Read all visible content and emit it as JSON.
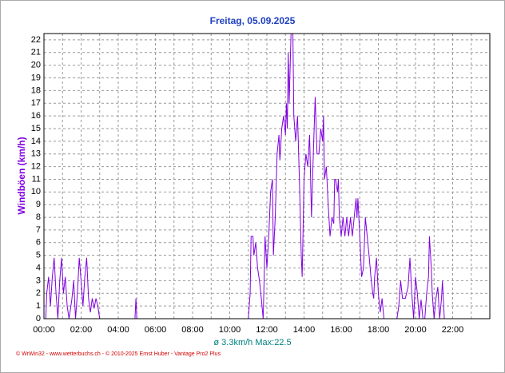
{
  "chart_data": {
    "type": "line",
    "title": "Freitag, 05.09.2025",
    "y_label": "Windböen (km/h)",
    "summary": "ø 3.3km/h  Max:22.5",
    "credit": "© WrWin32  -  www.wetterbuchs.ch  -  © 2010-2025 Ernst Huber - Vantage Pro2 Plus",
    "xlim": [
      0,
      24
    ],
    "ylim": [
      0,
      22.5
    ],
    "xticks": [
      {
        "value": 0,
        "label": "00:00"
      },
      {
        "value": 2,
        "label": "02:00"
      },
      {
        "value": 4,
        "label": "04:00"
      },
      {
        "value": 6,
        "label": "06:00"
      },
      {
        "value": 8,
        "label": "08:00"
      },
      {
        "value": 10,
        "label": "10:00"
      },
      {
        "value": 12,
        "label": "12:00"
      },
      {
        "value": 14,
        "label": "14:00"
      },
      {
        "value": 16,
        "label": "16:00"
      },
      {
        "value": 18,
        "label": "18:00"
      },
      {
        "value": 20,
        "label": "20:00"
      },
      {
        "value": 22,
        "label": "22:00"
      }
    ],
    "x_minor_ticks": [
      1,
      3,
      5,
      7,
      9,
      11,
      13,
      15,
      17,
      19,
      21,
      23
    ],
    "yticks": [
      0,
      1,
      2,
      3,
      4,
      5,
      6,
      7,
      8,
      9,
      10,
      11,
      12,
      13,
      14,
      15,
      16,
      17,
      18,
      19,
      20,
      21,
      22
    ],
    "grid": true,
    "series": [
      {
        "name": "Windböen",
        "color": "#8000e0",
        "x": [
          0.0,
          0.1,
          0.15,
          0.25,
          0.35,
          0.45,
          0.55,
          0.65,
          0.75,
          0.85,
          0.95,
          1.05,
          1.15,
          1.25,
          1.35,
          1.5,
          1.6,
          1.7,
          1.8,
          1.9,
          2.0,
          2.1,
          2.2,
          2.3,
          2.4,
          2.5,
          2.6,
          2.7,
          2.8,
          2.9,
          3.0,
          4.9,
          4.95,
          5.0,
          11.0,
          11.1,
          11.15,
          11.25,
          11.3,
          11.4,
          11.5,
          11.6,
          11.7,
          11.8,
          11.85,
          11.9,
          12.0,
          12.1,
          12.2,
          12.3,
          12.35,
          12.45,
          12.55,
          12.65,
          12.7,
          12.8,
          12.9,
          13.0,
          13.05,
          13.1,
          13.15,
          13.2,
          13.3,
          13.4,
          13.45,
          13.55,
          13.65,
          13.75,
          13.85,
          13.9,
          14.0,
          14.1,
          14.2,
          14.3,
          14.4,
          14.5,
          14.6,
          14.7,
          14.8,
          14.9,
          15.0,
          15.05,
          15.1,
          15.2,
          15.3,
          15.4,
          15.5,
          15.6,
          15.65,
          15.7,
          15.8,
          15.85,
          15.9,
          16.0,
          16.1,
          16.2,
          16.3,
          16.4,
          16.5,
          16.6,
          16.7,
          16.8,
          16.85,
          16.9,
          17.0,
          17.1,
          17.2,
          17.3,
          17.4,
          17.5,
          17.6,
          17.7,
          17.75,
          17.8,
          17.9,
          18.0,
          18.1,
          18.2,
          18.3,
          19.0,
          19.1,
          19.2,
          19.3,
          19.45,
          19.6,
          19.7,
          19.8,
          19.9,
          20.0,
          20.1,
          20.2,
          20.3,
          20.4,
          20.5,
          20.6,
          20.7,
          20.75,
          20.85,
          20.9,
          21.0,
          21.1,
          21.2,
          21.3,
          21.4,
          21.45,
          21.55,
          23.9
        ],
        "values": [
          0,
          0,
          2,
          3.3,
          1,
          3.3,
          4.8,
          2,
          0,
          3,
          4.8,
          2,
          3.3,
          1,
          0,
          1.5,
          3,
          0,
          2,
          4.8,
          3,
          1,
          3.3,
          4.8,
          1.6,
          0.5,
          1.6,
          0.8,
          1.6,
          1,
          0,
          0,
          1.6,
          0,
          0,
          2,
          6.5,
          6.5,
          5,
          6,
          4,
          3,
          1.6,
          0,
          3,
          6.5,
          4,
          6.5,
          10,
          11,
          5,
          8,
          13,
          14.5,
          12.5,
          15,
          16,
          14.5,
          17,
          15,
          21,
          17,
          22.5,
          22.5,
          16,
          14,
          16,
          11,
          5,
          3.3,
          11,
          13,
          12,
          14.5,
          8,
          13,
          17.5,
          13,
          13,
          15,
          14,
          16,
          11,
          12,
          9,
          6.5,
          8,
          7.5,
          11,
          11,
          10,
          11,
          8,
          6.5,
          8,
          6.5,
          8,
          6.5,
          8,
          6.5,
          8,
          9.5,
          8,
          9.5,
          6.5,
          3.3,
          4,
          8,
          6.5,
          5,
          3.3,
          2,
          1.6,
          3.3,
          4.8,
          2,
          0.5,
          1.6,
          0,
          0,
          1,
          3,
          1.6,
          1.6,
          2.5,
          4.8,
          2,
          0,
          3.3,
          2,
          0,
          1.5,
          0,
          0,
          2,
          3.3,
          6.5,
          4,
          2,
          0,
          1.6,
          2.5,
          0,
          1.6,
          3,
          0,
          0
        ]
      }
    ]
  }
}
